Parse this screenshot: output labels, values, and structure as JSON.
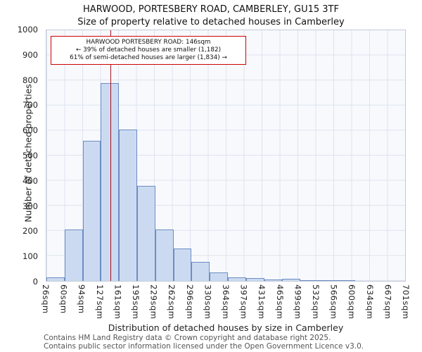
{
  "chart_data": {
    "type": "bar",
    "title": "HARWOOD, PORTESBERY ROAD, CAMBERLEY, GU15 3TF",
    "subtitle": "Size of property relative to detached houses in Camberley",
    "xlabel": "Distribution of detached houses by size in Camberley",
    "ylabel": "Number of detached properties",
    "ylim": [
      0,
      1000
    ],
    "ytick_step": 100,
    "grid": true,
    "bin_edges_sqm": [
      26,
      60,
      94,
      127,
      161,
      195,
      229,
      262,
      296,
      330,
      364,
      397,
      431,
      465,
      499,
      532,
      566,
      600,
      634,
      667,
      701
    ],
    "categories": [
      "26sqm",
      "60sqm",
      "94sqm",
      "127sqm",
      "161sqm",
      "195sqm",
      "229sqm",
      "262sqm",
      "296sqm",
      "330sqm",
      "364sqm",
      "397sqm",
      "431sqm",
      "465sqm",
      "499sqm",
      "532sqm",
      "566sqm",
      "600sqm",
      "634sqm",
      "667sqm",
      "701sqm"
    ],
    "values": [
      15,
      205,
      558,
      788,
      605,
      380,
      205,
      130,
      75,
      35,
      15,
      12,
      5,
      8,
      3,
      2,
      4,
      0,
      0,
      0
    ],
    "reference_line": {
      "value_sqm": 146,
      "color": "#a41224"
    },
    "annotation": {
      "line1": "HARWOOD PORTESBERY ROAD: 146sqm",
      "line2": "← 39% of detached houses are smaller (1,182)",
      "line3": "61% of semi-detached houses are larger (1,834) →"
    },
    "colors": {
      "bar_fill": "#ccdaf1",
      "bar_border": "#6b8dc4",
      "grid": "#dde3ee",
      "plot_bg": "#f8f9fd",
      "annotation_border": "#cc0000"
    }
  },
  "footer": {
    "line1": "Contains HM Land Registry data © Crown copyright and database right 2025.",
    "line2": "Contains public sector information licensed under the Open Government Licence v3.0."
  }
}
